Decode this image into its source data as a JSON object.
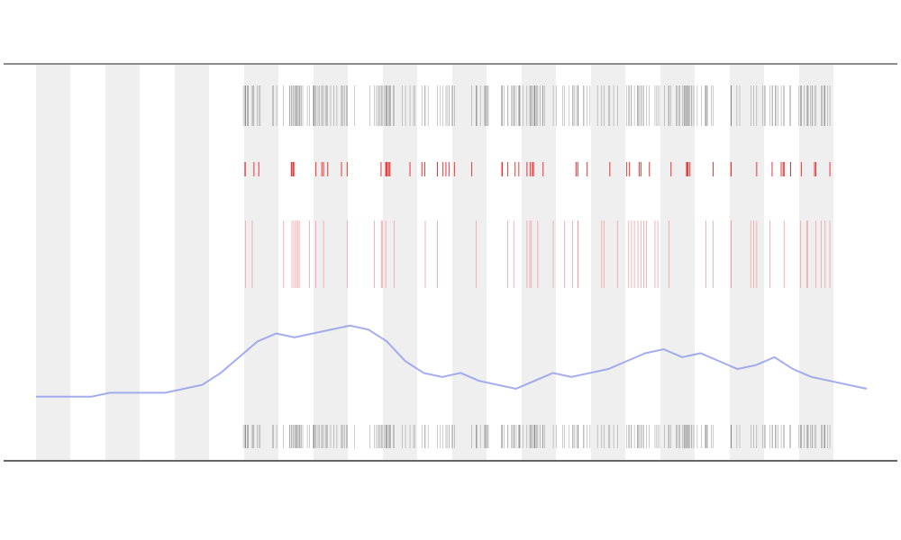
{
  "chart_data": {
    "type": "line",
    "series": [
      {
        "color": "#8f98ee",
        "values": [
          16,
          16,
          16,
          16,
          17,
          17,
          17,
          17,
          18,
          19,
          22,
          26,
          30,
          32,
          31,
          32,
          33,
          34,
          33,
          30,
          25,
          22,
          21,
          22,
          20,
          19,
          18,
          20,
          22,
          21,
          22,
          23,
          25,
          27,
          28,
          26,
          27,
          25,
          23,
          24,
          26,
          23,
          21,
          20,
          19,
          18
        ]
      }
    ],
    "ylim": [
      0,
      100
    ]
  }
}
